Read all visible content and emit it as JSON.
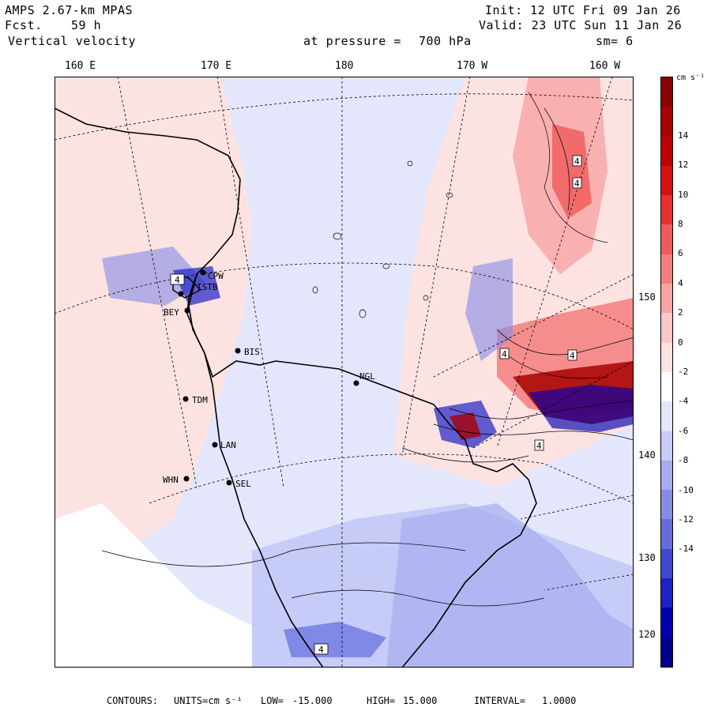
{
  "header": {
    "model": "AMPS 2.67-km MPAS",
    "forecast_label": "Fcst.",
    "forecast_hours": "59 h",
    "field": "Vertical velocity",
    "init": "Init: 12 UTC Fri 09 Jan 26",
    "valid": "Valid: 23 UTC Sun 11 Jan 26",
    "pressure_label": "at pressure =",
    "pressure_value": "700 hPa",
    "smoothing": "sm= 6"
  },
  "longitude_labels": [
    "160 E",
    "170 E",
    "180",
    "170 W",
    "160 W"
  ],
  "latitude_labels": [
    "150 W",
    "140 W",
    "130 W",
    "120 W"
  ],
  "colorbar": {
    "unit": "cm s⁻¹",
    "tick_labels": [
      "14",
      "12",
      "10",
      "8",
      "6",
      "4",
      "2",
      "0",
      "-2",
      "-4",
      "-6",
      "-8",
      "-10",
      "-12",
      "-14"
    ],
    "colors": [
      "#8b0000",
      "#a80000",
      "#c00000",
      "#d81010",
      "#e83030",
      "#ef5a5a",
      "#f47e7e",
      "#f8a4a4",
      "#fbc6c6",
      "#fde2e2",
      "#ffffff",
      "#e4e6fc",
      "#c6cbf7",
      "#a6acf0",
      "#858ce6",
      "#646cde",
      "#4048d2",
      "#1c22c8",
      "#0000b0",
      "#00008c"
    ]
  },
  "stations": [
    {
      "name": "CPW"
    },
    {
      "name": "ISTB"
    },
    {
      "name": "BEY"
    },
    {
      "name": "BIS"
    },
    {
      "name": "NGL"
    },
    {
      "name": "TDM"
    },
    {
      "name": "LAN"
    },
    {
      "name": "WHN"
    },
    {
      "name": "SEL"
    }
  ],
  "extrema_markers": [
    "4",
    "4",
    "4",
    "4",
    "4",
    "4",
    "4"
  ],
  "footer": {
    "contours_label": "CONTOURS:",
    "units_label": "UNITS=cm s⁻¹",
    "low_label": "LOW=",
    "low_value": "-15.000",
    "high_label": "HIGH=",
    "high_value": "15.000",
    "interval_label": "INTERVAL=",
    "interval_value": "1.0000"
  }
}
